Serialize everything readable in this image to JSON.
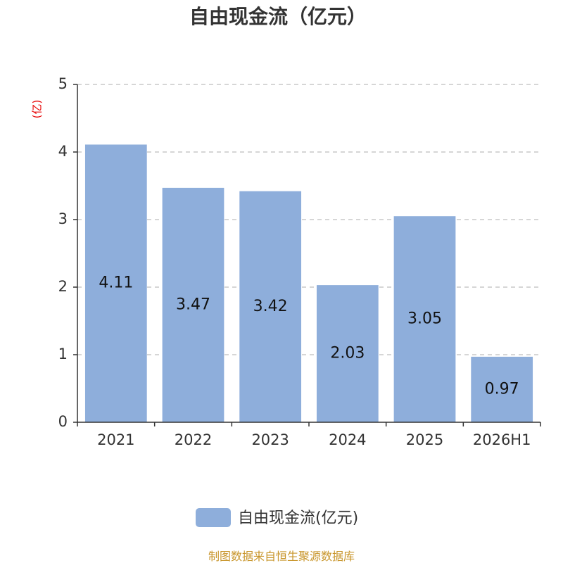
{
  "chart_data": {
    "type": "bar",
    "title": "自由现金流（亿元）",
    "ylabel": "(亿)",
    "categories": [
      "2021",
      "2022",
      "2023",
      "2024",
      "2025",
      "2026H1"
    ],
    "series": [
      {
        "name": "自由现金流(亿元)",
        "values": [
          4.11,
          3.47,
          3.42,
          2.03,
          3.05,
          0.97
        ]
      }
    ],
    "data_labels": [
      "4.11",
      "3.47",
      "3.42",
      "2.03",
      "3.05",
      "0.97"
    ],
    "ylim": [
      0,
      5
    ],
    "yticks": [
      0,
      1,
      2,
      3,
      4,
      5
    ],
    "grid": true,
    "legend_position": "bottom-center",
    "bar_color": "#8eaedb",
    "source": "制图数据来自恒生聚源数据库"
  }
}
